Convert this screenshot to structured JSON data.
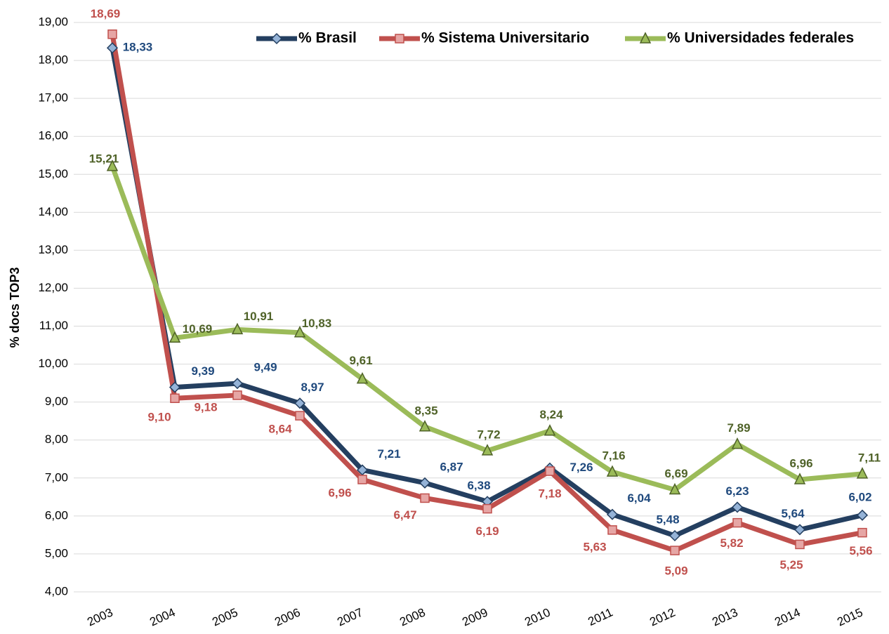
{
  "chart_data": {
    "type": "line",
    "y_label": "% docs TOP3",
    "categories": [
      "2003",
      "2004",
      "2005",
      "2006",
      "2007",
      "2008",
      "2009",
      "2010",
      "2011",
      "2012",
      "2013",
      "2014",
      "2015"
    ],
    "series": [
      {
        "name": "% Brasil",
        "color": "#243f60",
        "marker_color": "#95b3d7",
        "label_color": "#1f497d",
        "marker": "diamond",
        "values": [
          18.33,
          9.39,
          9.49,
          8.97,
          7.21,
          6.87,
          6.38,
          7.26,
          6.04,
          5.48,
          6.23,
          5.64,
          6.02
        ],
        "value_labels": [
          "18,33",
          "9,39",
          "9,49",
          "8,97",
          "7,21",
          "6,87",
          "6,38",
          "7,26",
          "6,04",
          "5,48",
          "6,23",
          "5,64",
          "6,02"
        ]
      },
      {
        "name": "% Sistema Universitario",
        "color": "#c0504d",
        "marker_color": "#e6a6a5",
        "label_color": "#c0504d",
        "marker": "square",
        "values": [
          18.69,
          9.1,
          9.18,
          8.64,
          6.96,
          6.47,
          6.19,
          7.18,
          5.63,
          5.09,
          5.82,
          5.25,
          5.56
        ],
        "value_labels": [
          "18,69",
          "9,10",
          "9,18",
          "8,64",
          "6,96",
          "6,47",
          "6,19",
          "7,18",
          "5,63",
          "5,09",
          "5,82",
          "5,25",
          "5,56"
        ]
      },
      {
        "name": "% Universidades federales",
        "color": "#9bbb59",
        "marker_color": "#9bbb59",
        "label_color": "#4f6228",
        "marker": "triangle",
        "values": [
          15.21,
          10.69,
          10.91,
          10.83,
          9.61,
          8.35,
          7.72,
          8.24,
          7.16,
          6.69,
          7.89,
          6.96,
          7.11
        ],
        "value_labels": [
          "15,21",
          "10,69",
          "10,91",
          "10,83",
          "9,61",
          "8,35",
          "7,72",
          "8,24",
          "7,16",
          "6,69",
          "7,89",
          "6,96",
          "7,11"
        ]
      }
    ],
    "ylim": [
      4,
      19
    ],
    "yticks": [
      {
        "value": 4,
        "label": "4,00"
      },
      {
        "value": 5,
        "label": "5,00"
      },
      {
        "value": 6,
        "label": "6,00"
      },
      {
        "value": 7,
        "label": "7,00"
      },
      {
        "value": 8,
        "label": "8,00"
      },
      {
        "value": 9,
        "label": "9,00"
      },
      {
        "value": 10,
        "label": "10,00"
      },
      {
        "value": 11,
        "label": "11,00"
      },
      {
        "value": 12,
        "label": "12,00"
      },
      {
        "value": 13,
        "label": "13,00"
      },
      {
        "value": 14,
        "label": "14,00"
      },
      {
        "value": 15,
        "label": "15,00"
      },
      {
        "value": 16,
        "label": "16,00"
      },
      {
        "value": 17,
        "label": "17,00"
      },
      {
        "value": 18,
        "label": "18,00"
      },
      {
        "value": 19,
        "label": "19,00"
      }
    ],
    "grid": true,
    "legend": "top"
  }
}
